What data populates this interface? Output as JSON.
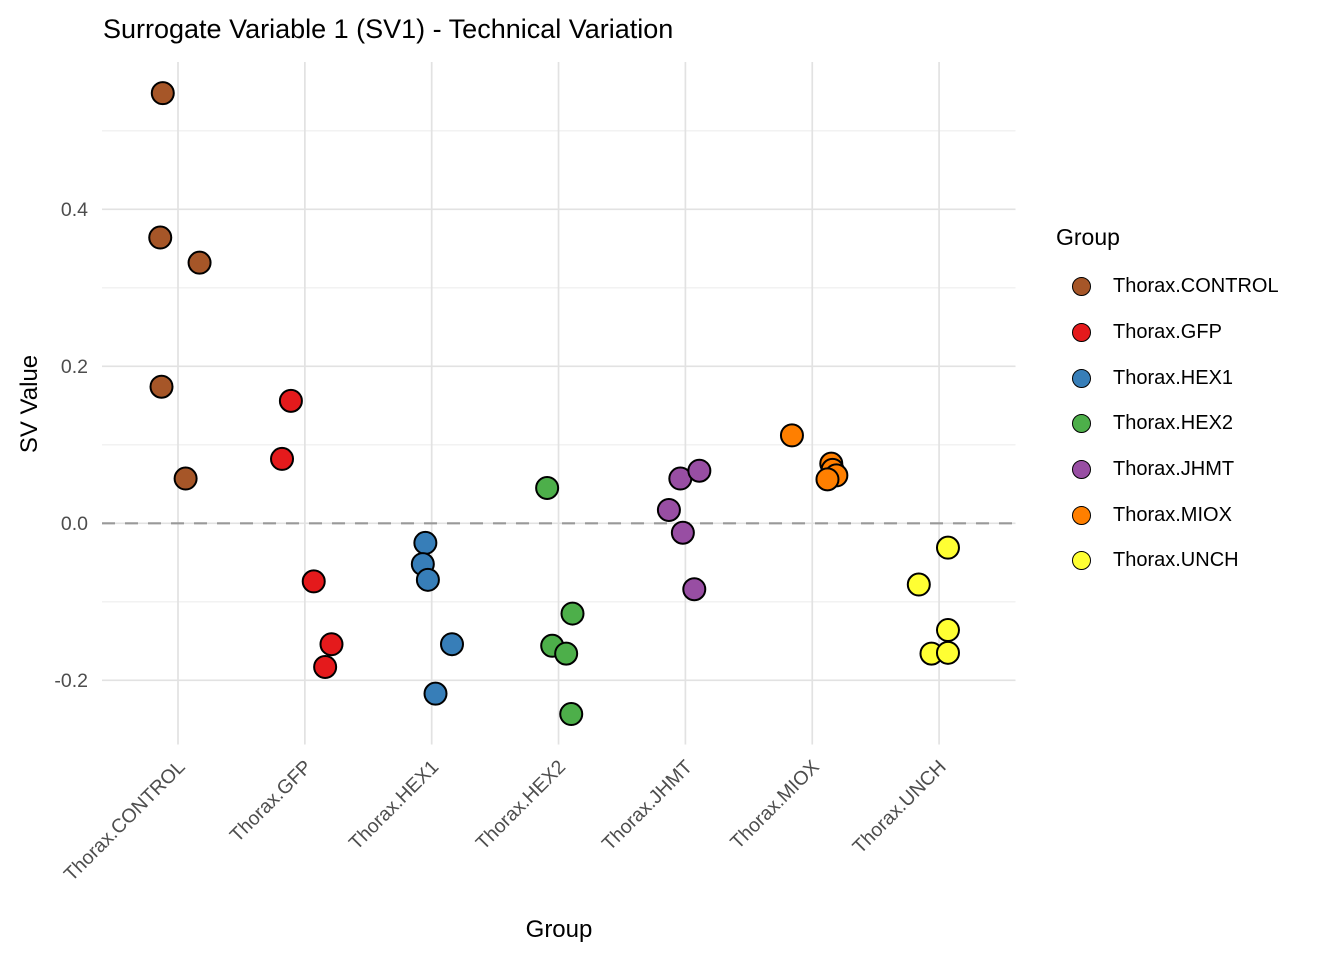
{
  "title": "Surrogate Variable 1 (SV1) - Technical Variation",
  "axes": {
    "x_title": "Group",
    "y_title": "SV Value",
    "y_tick_labels": [
      "0.4",
      "0.2",
      "0.0",
      "-0.2"
    ],
    "y_tick_values": [
      0.4,
      0.2,
      0.0,
      -0.2
    ],
    "y_minor_values": [
      0.5,
      0.3,
      0.1,
      -0.1
    ],
    "x_categories": [
      "Thorax.CONTROL",
      "Thorax.GFP",
      "Thorax.HEX1",
      "Thorax.HEX2",
      "Thorax.JHMT",
      "Thorax.MIOX",
      "Thorax.UNCH"
    ]
  },
  "legend": {
    "title": "Group",
    "items": [
      {
        "label": "Thorax.CONTROL",
        "color": "#A65628"
      },
      {
        "label": "Thorax.GFP",
        "color": "#E41A1C"
      },
      {
        "label": "Thorax.HEX1",
        "color": "#377EB8"
      },
      {
        "label": "Thorax.HEX2",
        "color": "#4DAF4A"
      },
      {
        "label": "Thorax.JHMT",
        "color": "#984EA3"
      },
      {
        "label": "Thorax.MIOX",
        "color": "#FF7F00"
      },
      {
        "label": "Thorax.UNCH",
        "color": "#FFFF33"
      }
    ]
  },
  "reference_line": {
    "y": 0.0,
    "style": "dashed",
    "color": "#999999"
  },
  "style_colors": {
    "grid_major": "#E2E2E2",
    "grid_minor": "#EDEDED",
    "tick_label": "#4D4D4D",
    "point_stroke": "#000000"
  },
  "chart_data": {
    "type": "scatter",
    "title": "Surrogate Variable 1 (SV1) - Technical Variation",
    "xlabel": "Group",
    "ylabel": "SV Value",
    "ylim": [
      -0.283,
      0.588
    ],
    "grid": true,
    "legend_position": "right",
    "categories": [
      "Thorax.CONTROL",
      "Thorax.GFP",
      "Thorax.HEX1",
      "Thorax.HEX2",
      "Thorax.JHMT",
      "Thorax.MIOX",
      "Thorax.UNCH"
    ],
    "series": [
      {
        "name": "Thorax.CONTROL",
        "color": "#A65628",
        "values": [
          0.548,
          0.364,
          0.332,
          0.174,
          0.057
        ],
        "jitter": [
          -0.12,
          -0.14,
          0.17,
          -0.13,
          0.06
        ]
      },
      {
        "name": "Thorax.GFP",
        "color": "#E41A1C",
        "values": [
          0.156,
          0.082,
          -0.074,
          -0.154,
          -0.183
        ],
        "jitter": [
          -0.11,
          -0.18,
          0.07,
          0.21,
          0.16
        ]
      },
      {
        "name": "Thorax.HEX1",
        "color": "#377EB8",
        "values": [
          -0.025,
          -0.052,
          -0.072,
          -0.154,
          -0.217
        ],
        "jitter": [
          -0.05,
          -0.07,
          -0.03,
          0.16,
          0.03
        ]
      },
      {
        "name": "Thorax.HEX2",
        "color": "#4DAF4A",
        "values": [
          0.045,
          -0.115,
          -0.156,
          -0.166,
          -0.243
        ],
        "jitter": [
          -0.09,
          0.11,
          -0.05,
          0.06,
          0.1
        ]
      },
      {
        "name": "Thorax.JHMT",
        "color": "#984EA3",
        "values": [
          0.057,
          0.067,
          0.017,
          -0.012,
          -0.084
        ],
        "jitter": [
          -0.04,
          0.11,
          -0.13,
          -0.02,
          0.07
        ]
      },
      {
        "name": "Thorax.MIOX",
        "color": "#FF7F00",
        "values": [
          0.112,
          0.076,
          0.068,
          0.061,
          0.056
        ],
        "jitter": [
          -0.16,
          0.15,
          0.16,
          0.19,
          0.12
        ]
      },
      {
        "name": "Thorax.UNCH",
        "color": "#FFFF33",
        "values": [
          -0.031,
          -0.078,
          -0.136,
          -0.166,
          -0.165
        ],
        "jitter": [
          0.07,
          -0.16,
          0.07,
          -0.06,
          0.07
        ]
      }
    ]
  }
}
